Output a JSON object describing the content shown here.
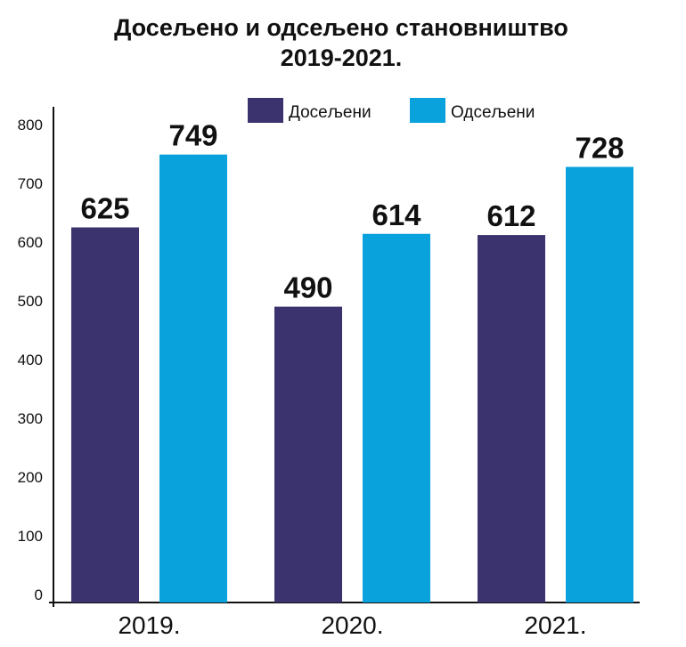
{
  "chart_data": {
    "type": "bar",
    "title": "Досељено и одсељено становништво",
    "subtitle": "2019-2021.",
    "categories": [
      "2019.",
      "2020.",
      "2021."
    ],
    "series": [
      {
        "name": "Досељени",
        "color": "#3a336e",
        "values": [
          625,
          490,
          612
        ]
      },
      {
        "name": "Одсељени",
        "color": "#0aa2dc",
        "values": [
          749,
          614,
          728
        ]
      }
    ],
    "data_labels": [
      [
        "625",
        "749"
      ],
      [
        "490",
        "614"
      ],
      [
        "612",
        "728"
      ]
    ],
    "yticks": [
      "0",
      "100",
      "200",
      "300",
      "400",
      "500",
      "600",
      "700",
      "800"
    ],
    "ylim": [
      0,
      850
    ],
    "legend_position": "top",
    "grid": false
  }
}
